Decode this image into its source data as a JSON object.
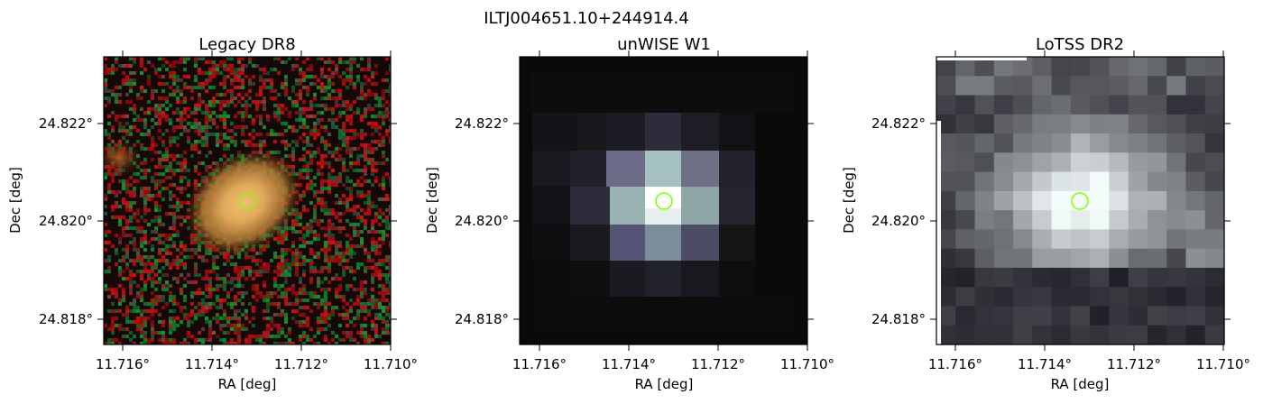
{
  "figure": {
    "suptitle": "ILTJ004651.10+244914.4"
  },
  "colors": {
    "marker": "#7fff00",
    "frame": "#000000",
    "text": "#000000"
  },
  "panels": [
    {
      "id": "legacy",
      "title": "Legacy DR8",
      "xlabel": "RA [deg]",
      "ylabel": "Dec [deg]",
      "xticks": [
        "11.716°",
        "11.714°",
        "11.712°",
        "11.710°"
      ],
      "yticks": [
        "24.822°",
        "24.820°",
        "24.818°"
      ],
      "marker": {
        "ra": 11.7132,
        "dec": 24.8205,
        "shape": "circle"
      },
      "image": {
        "kind": "optical colour composite",
        "description_icon": "galaxy-image"
      }
    },
    {
      "id": "unwise",
      "title": "unWISE W1",
      "xlabel": "RA [deg]",
      "ylabel": "Dec [deg]",
      "xticks": [
        "11.716°",
        "11.714°",
        "11.712°",
        "11.710°"
      ],
      "yticks": [
        "24.822°",
        "24.820°",
        "24.818°"
      ],
      "marker": {
        "ra": 11.7132,
        "dec": 24.8205,
        "shape": "circle"
      },
      "image": {
        "kind": "infrared greyscale",
        "description_icon": "pixel-image"
      }
    },
    {
      "id": "lotss",
      "title": "LoTSS DR2",
      "xlabel": "RA [deg]",
      "ylabel": "Dec [deg]",
      "xticks": [
        "11.716°",
        "11.714°",
        "11.712°",
        "11.710°"
      ],
      "yticks": [
        "24.822°",
        "24.820°",
        "24.818°"
      ],
      "marker": {
        "ra": 11.7132,
        "dec": 24.8205,
        "shape": "circle"
      },
      "image": {
        "kind": "radio bone colormap",
        "description_icon": "pixel-image"
      }
    }
  ]
}
